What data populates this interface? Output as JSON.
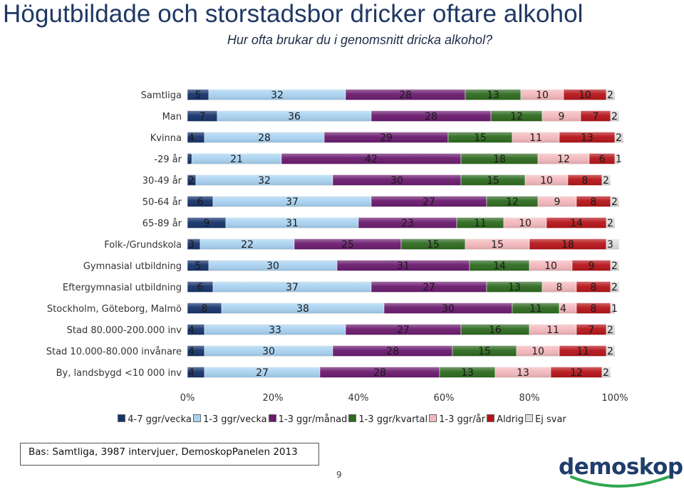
{
  "title": "Högutbildade och storstadsbor dricker oftare alkohol",
  "subtitle": "Hur ofta brukar du i genomsnitt dricka alkohol?",
  "footer": "Bas: Samtliga, 3987 intervjuer, DemoskopPanelen 2013",
  "page_number": "9",
  "logo": "demoskop",
  "colors": {
    "series": [
      "#16336b",
      "#a9d2f1",
      "#6a1a6e",
      "#2d6a1f",
      "#f3b8bc",
      "#b51419",
      "#dcdcdc"
    ]
  },
  "chart_data": {
    "type": "bar",
    "orientation": "horizontal",
    "stacked": "percent",
    "title": "Hur ofta brukar du i genomsnitt dricka alkohol?",
    "categories": [
      "Samtliga",
      "Man",
      "Kvinna",
      "-29 år",
      "30-49 år",
      "50-64 år",
      "65-89 år",
      "Folk-/Grundskola",
      "Gymnasial utbildning",
      "Eftergymnasial utbildning",
      "Stockholm, Göteborg, Malmö",
      "Stad 80.000-200.000 inv",
      "Stad 10.000-80.000 invånare",
      "By, landsbygd <10 000 inv"
    ],
    "series": [
      {
        "name": "4-7 ggr/vecka",
        "values": [
          5,
          7,
          4,
          1,
          2,
          6,
          9,
          3,
          5,
          6,
          8,
          4,
          4,
          4
        ]
      },
      {
        "name": "1-3 ggr/vecka",
        "values": [
          32,
          36,
          28,
          21,
          32,
          37,
          31,
          22,
          30,
          37,
          38,
          33,
          30,
          27
        ]
      },
      {
        "name": "1-3 ggr/månad",
        "values": [
          28,
          28,
          29,
          42,
          30,
          27,
          23,
          25,
          31,
          27,
          30,
          27,
          28,
          28
        ]
      },
      {
        "name": "1-3 ggr/kvartal",
        "values": [
          13,
          12,
          15,
          18,
          15,
          12,
          11,
          15,
          14,
          13,
          11,
          16,
          15,
          13
        ]
      },
      {
        "name": "1-3 ggr/år",
        "values": [
          10,
          9,
          11,
          12,
          10,
          9,
          10,
          15,
          10,
          8,
          4,
          11,
          10,
          13
        ]
      },
      {
        "name": "Aldrig",
        "values": [
          10,
          7,
          13,
          6,
          8,
          8,
          14,
          18,
          9,
          8,
          8,
          7,
          11,
          12
        ]
      },
      {
        "name": "Ej svar",
        "values": [
          2,
          2,
          2,
          1,
          2,
          2,
          2,
          3,
          2,
          2,
          1,
          2,
          2,
          2
        ]
      }
    ],
    "x_ticks": [
      "0%",
      "20%",
      "40%",
      "60%",
      "80%",
      "100%"
    ],
    "xlim": [
      0,
      100
    ],
    "legend_position": "bottom",
    "grid": false
  }
}
